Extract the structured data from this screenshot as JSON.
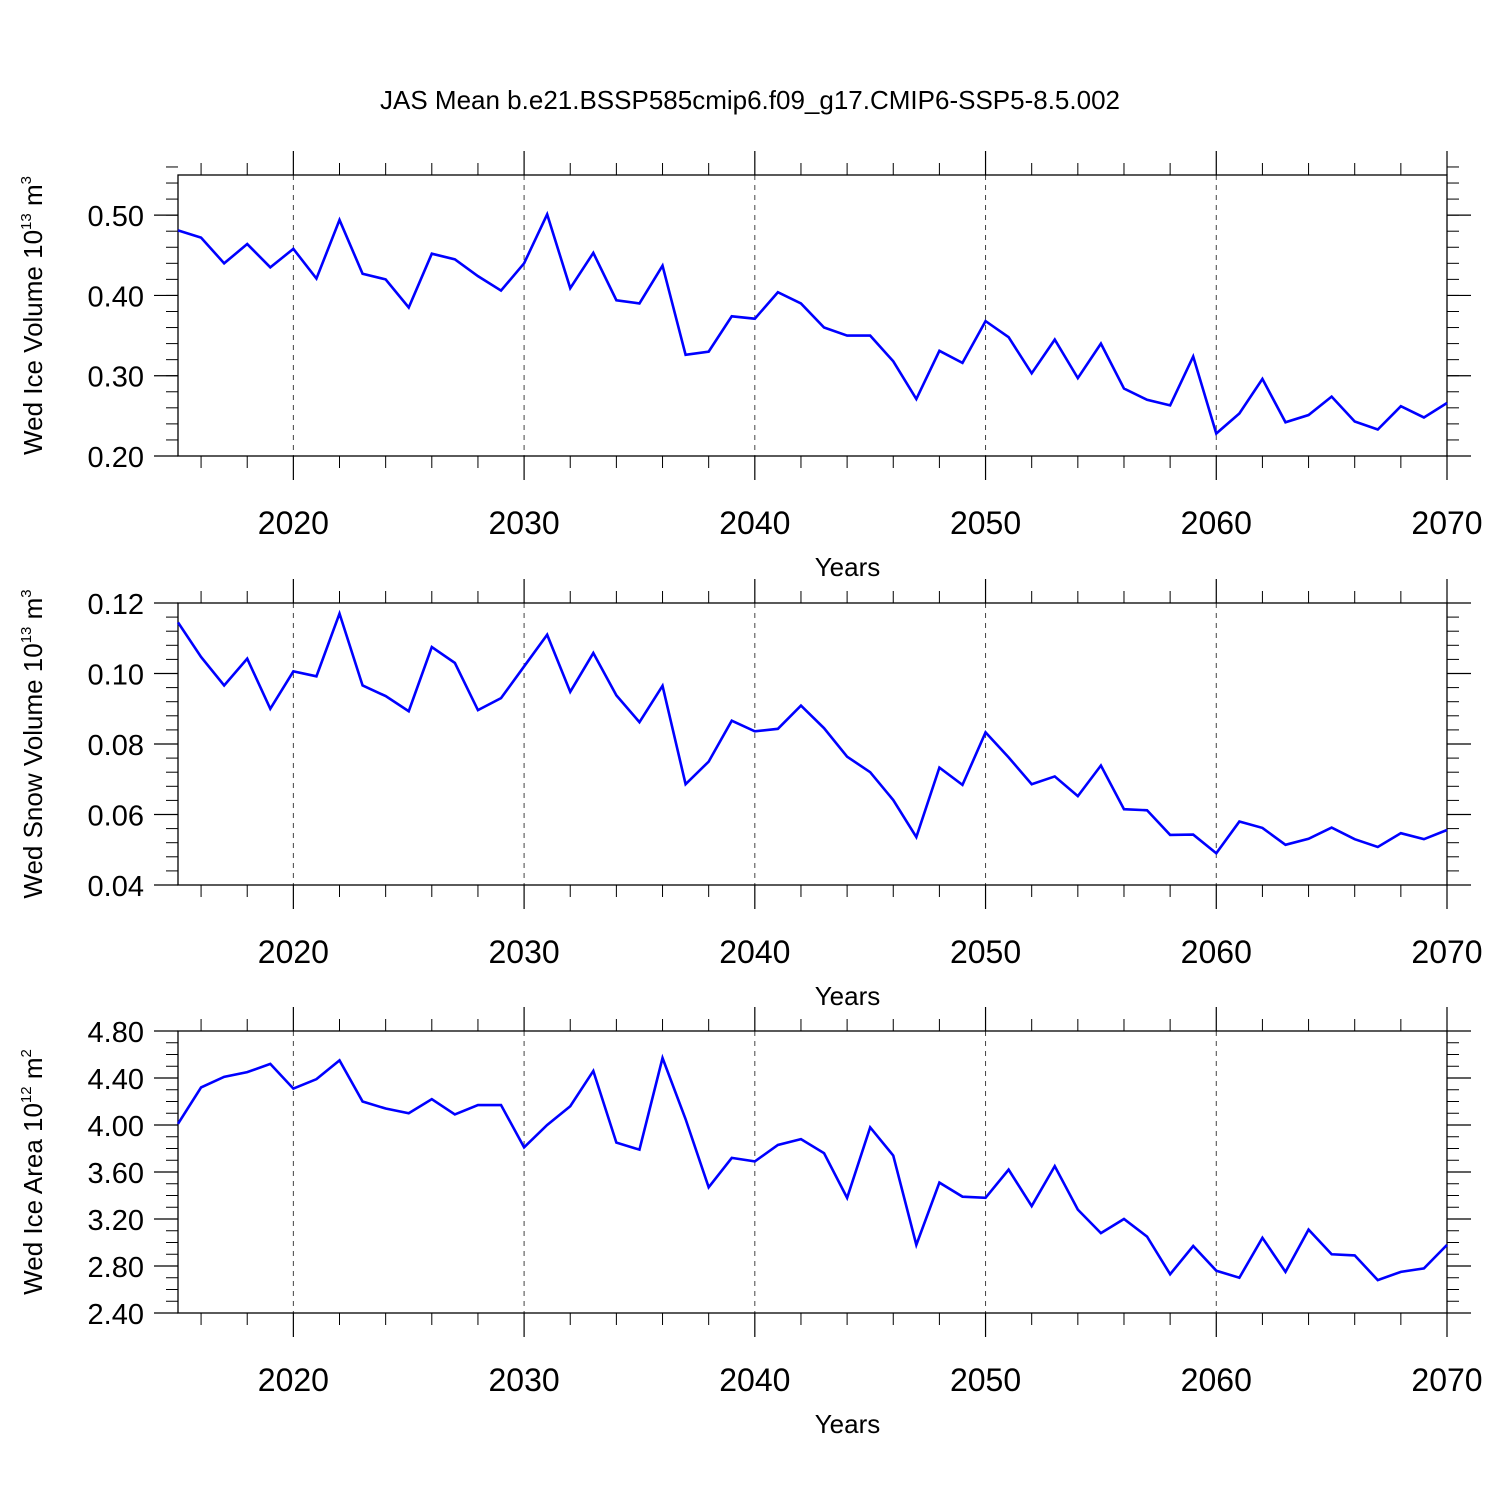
{
  "title": "JAS Mean b.e21.BSSP585cmip6.f09_g17.CMIP6-SSP5-8.5.002",
  "line_color": "#0000ff",
  "chart_data": [
    {
      "type": "line",
      "name": "panel-ice-volume",
      "ylabel": "Wed Ice Volume 10",
      "ylabel_exp": "13",
      "ylabel_unit": " m",
      "ylabel_unit_exp": "3",
      "xlabel": "Years",
      "xlim": [
        2015,
        2070
      ],
      "ylim": [
        0.2,
        0.55
      ],
      "yticks": [
        0.2,
        0.3,
        0.4,
        0.5
      ],
      "ytick_labels": [
        "0.20",
        "0.30",
        "0.40",
        "0.50"
      ],
      "yminor_step": 0.02,
      "xticks": [
        2020,
        2030,
        2040,
        2050,
        2060,
        2070
      ],
      "xtick_labels": [
        "2020",
        "2030",
        "2040",
        "2050",
        "2060",
        "2070"
      ],
      "grid_x": true,
      "x": [
        2015,
        2016,
        2017,
        2018,
        2019,
        2020,
        2021,
        2022,
        2023,
        2024,
        2025,
        2026,
        2027,
        2028,
        2029,
        2030,
        2031,
        2032,
        2033,
        2034,
        2035,
        2036,
        2037,
        2038,
        2039,
        2040,
        2041,
        2042,
        2043,
        2044,
        2045,
        2046,
        2047,
        2048,
        2049,
        2050,
        2051,
        2052,
        2053,
        2054,
        2055,
        2056,
        2057,
        2058,
        2059,
        2060,
        2061,
        2062,
        2063,
        2064,
        2065,
        2066,
        2067,
        2068,
        2069,
        2070
      ],
      "values": [
        0.481,
        0.472,
        0.44,
        0.464,
        0.435,
        0.458,
        0.421,
        0.494,
        0.427,
        0.42,
        0.385,
        0.452,
        0.445,
        0.424,
        0.406,
        0.44,
        0.501,
        0.409,
        0.453,
        0.394,
        0.39,
        0.437,
        0.326,
        0.33,
        0.374,
        0.371,
        0.404,
        0.39,
        0.36,
        0.35,
        0.35,
        0.318,
        0.271,
        0.331,
        0.316,
        0.368,
        0.348,
        0.303,
        0.345,
        0.297,
        0.34,
        0.284,
        0.27,
        0.263,
        0.324,
        0.228,
        0.253,
        0.296,
        0.242,
        0.251,
        0.274,
        0.243,
        0.233,
        0.262,
        0.248,
        0.266
      ]
    },
    {
      "type": "line",
      "name": "panel-snow-volume",
      "ylabel": "Wed Snow Volume 10",
      "ylabel_exp": "13",
      "ylabel_unit": " m",
      "ylabel_unit_exp": "3",
      "xlabel": "Years",
      "xlim": [
        2015,
        2070
      ],
      "ylim": [
        0.04,
        0.12
      ],
      "yticks": [
        0.04,
        0.06,
        0.08,
        0.1,
        0.12
      ],
      "ytick_labels": [
        "0.04",
        "0.06",
        "0.08",
        "0.10",
        "0.12"
      ],
      "yminor_step": 0.004,
      "xticks": [
        2020,
        2030,
        2040,
        2050,
        2060,
        2070
      ],
      "xtick_labels": [
        "2020",
        "2030",
        "2040",
        "2050",
        "2060",
        "2070"
      ],
      "grid_x": true,
      "x": [
        2015,
        2016,
        2017,
        2018,
        2019,
        2020,
        2021,
        2022,
        2023,
        2024,
        2025,
        2026,
        2027,
        2028,
        2029,
        2030,
        2031,
        2032,
        2033,
        2034,
        2035,
        2036,
        2037,
        2038,
        2039,
        2040,
        2041,
        2042,
        2043,
        2044,
        2045,
        2046,
        2047,
        2048,
        2049,
        2050,
        2051,
        2052,
        2053,
        2054,
        2055,
        2056,
        2057,
        2058,
        2059,
        2060,
        2061,
        2062,
        2063,
        2064,
        2065,
        2066,
        2067,
        2068,
        2069,
        2070
      ],
      "values": [
        0.1145,
        0.1047,
        0.0966,
        0.1042,
        0.09,
        0.1006,
        0.0992,
        0.117,
        0.0966,
        0.0936,
        0.0893,
        0.1075,
        0.103,
        0.0896,
        0.093,
        0.102,
        0.111,
        0.0948,
        0.1058,
        0.0938,
        0.0862,
        0.0965,
        0.0686,
        0.075,
        0.0866,
        0.0836,
        0.0843,
        0.0909,
        0.0845,
        0.0764,
        0.072,
        0.0641,
        0.0536,
        0.0733,
        0.0684,
        0.0833,
        0.0762,
        0.0686,
        0.0708,
        0.0652,
        0.0739,
        0.0615,
        0.0612,
        0.0542,
        0.0543,
        0.049,
        0.058,
        0.0562,
        0.0514,
        0.0531,
        0.0563,
        0.053,
        0.0508,
        0.0547,
        0.053,
        0.0556
      ]
    },
    {
      "type": "line",
      "name": "panel-ice-area",
      "ylabel": "Wed Ice Area 10",
      "ylabel_exp": "12",
      "ylabel_unit": " m",
      "ylabel_unit_exp": "2",
      "xlabel": "Years",
      "xlim": [
        2015,
        2070
      ],
      "ylim": [
        2.4,
        4.8
      ],
      "yticks": [
        2.4,
        2.8,
        3.2,
        3.6,
        4.0,
        4.4,
        4.8
      ],
      "ytick_labels": [
        "2.40",
        "2.80",
        "3.20",
        "3.60",
        "4.00",
        "4.40",
        "4.80"
      ],
      "yminor_step": 0.1,
      "xticks": [
        2020,
        2030,
        2040,
        2050,
        2060,
        2070
      ],
      "xtick_labels": [
        "2020",
        "2030",
        "2040",
        "2050",
        "2060",
        "2070"
      ],
      "grid_x": true,
      "x": [
        2015,
        2016,
        2017,
        2018,
        2019,
        2020,
        2021,
        2022,
        2023,
        2024,
        2025,
        2026,
        2027,
        2028,
        2029,
        2030,
        2031,
        2032,
        2033,
        2034,
        2035,
        2036,
        2037,
        2038,
        2039,
        2040,
        2041,
        2042,
        2043,
        2044,
        2045,
        2046,
        2047,
        2048,
        2049,
        2050,
        2051,
        2052,
        2053,
        2054,
        2055,
        2056,
        2057,
        2058,
        2059,
        2060,
        2061,
        2062,
        2063,
        2064,
        2065,
        2066,
        2067,
        2068,
        2069,
        2070
      ],
      "values": [
        4.01,
        4.32,
        4.41,
        4.45,
        4.52,
        4.31,
        4.39,
        4.55,
        4.2,
        4.14,
        4.1,
        4.22,
        4.09,
        4.17,
        4.17,
        3.81,
        4.0,
        4.16,
        4.46,
        3.85,
        3.79,
        4.57,
        4.05,
        3.47,
        3.72,
        3.69,
        3.83,
        3.88,
        3.76,
        3.38,
        3.98,
        3.74,
        2.98,
        3.51,
        3.39,
        3.38,
        3.62,
        3.31,
        3.65,
        3.28,
        3.08,
        3.2,
        3.05,
        2.73,
        2.97,
        2.76,
        2.7,
        3.04,
        2.75,
        3.11,
        2.9,
        2.89,
        2.68,
        2.75,
        2.78,
        2.98
      ]
    }
  ]
}
